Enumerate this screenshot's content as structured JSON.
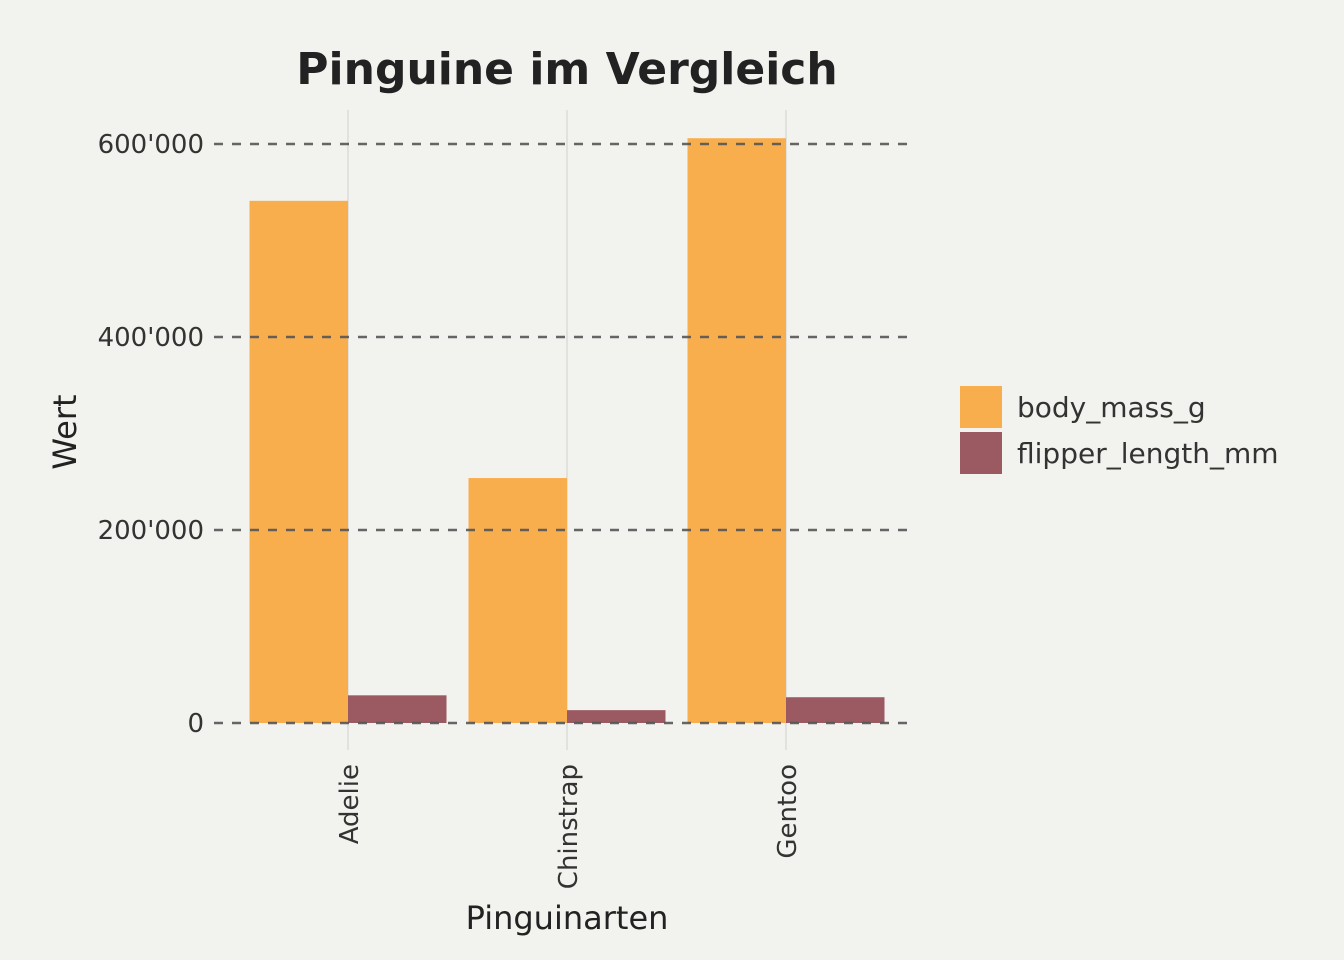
{
  "chart_data": {
    "type": "bar",
    "title": "Pinguine im Vergleich",
    "xlabel": "Pinguinarten",
    "ylabel": "Wert",
    "categories": [
      "Adelie",
      "Chinstrap",
      "Gentoo"
    ],
    "series": [
      {
        "name": "body_mass_g",
        "color": "#F9AE4E",
        "values": [
          541100,
          253850,
          606000
        ]
      },
      {
        "name": "flipper_length_mm",
        "color": "#9B5A62",
        "values": [
          28683,
          13316,
          26714
        ]
      }
    ],
    "ylim": [
      0,
      640000
    ],
    "yticks": [
      0,
      200000,
      400000,
      600000
    ],
    "ytick_labels": [
      "0",
      "200'000",
      "400'000",
      "600'000"
    ],
    "grid": {
      "horizontal": "dashed",
      "vertical": "solid"
    },
    "legend_position": "right",
    "x_tick_rotation": "vertical"
  }
}
